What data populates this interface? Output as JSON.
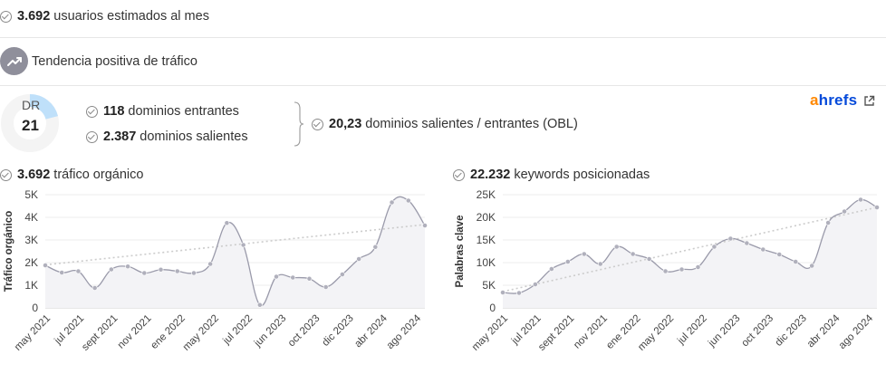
{
  "stats": {
    "monthly_users": {
      "value": "3.692",
      "label": "usuarios estimados al mes"
    },
    "trend": {
      "label": "Tendencia positiva de tráfico"
    },
    "dr": {
      "label": "DR",
      "value": "21",
      "score": 21
    },
    "incoming_domains": {
      "value": "118",
      "label": "dominios entrantes"
    },
    "outgoing_domains": {
      "value": "2.387",
      "label": "dominios salientes"
    },
    "obl": {
      "value": "20,23",
      "label": "dominios salientes / entrantes (OBL)"
    }
  },
  "brand": {
    "prefix": "a",
    "rest": "hrefs",
    "icon": "external-link-icon"
  },
  "icons": {
    "check": "check-circle-icon",
    "trend": "trending-up-icon"
  },
  "colors": {
    "line": "#9a9aaa",
    "trend_line": "#cccccc",
    "point": "#b0b0bc",
    "fill": "#f3f3f6",
    "dr_arc": "#bfe0fa",
    "dr_track": "#f4f4f4"
  },
  "charts": {
    "traffic": {
      "value": "3.692",
      "label": "tráfico orgánico"
    },
    "keywords": {
      "value": "22.232",
      "label": "keywords posicionadas"
    }
  },
  "chart_data": [
    {
      "type": "line",
      "ylabel": "Tráfico orgánico",
      "ylim": [
        0,
        5000
      ],
      "yticks": [
        0,
        1000,
        2000,
        3000,
        4000,
        5000
      ],
      "ytick_labels": [
        "0",
        "1K",
        "2K",
        "3K",
        "4K",
        "5K"
      ],
      "xtick_labels": [
        "may 2021",
        "jul 2021",
        "sept 2021",
        "nov 2021",
        "ene 2022",
        "may 2022",
        "jul 2022",
        "jun 2023",
        "oct 2023",
        "dic 2023",
        "abr 2024",
        "ago 2024"
      ],
      "values": [
        1880,
        1560,
        1620,
        880,
        1700,
        1830,
        1540,
        1690,
        1620,
        1540,
        1940,
        3750,
        2780,
        130,
        1380,
        1340,
        1290,
        920,
        1480,
        2160,
        2690,
        4660,
        4740,
        3640
      ],
      "trend": [
        1900,
        3680
      ],
      "grid": true
    },
    {
      "type": "line",
      "ylabel": "Palabras clave",
      "ylim": [
        0,
        25000
      ],
      "yticks": [
        0,
        5000,
        10000,
        15000,
        20000,
        25000
      ],
      "ytick_labels": [
        "0",
        "5K",
        "10K",
        "15K",
        "20K",
        "25K"
      ],
      "xtick_labels": [
        "may 2021",
        "jul 2021",
        "sept 2021",
        "nov 2021",
        "ene 2022",
        "may 2022",
        "jul 2022",
        "jun 2023",
        "oct 2023",
        "dic 2023",
        "abr 2024",
        "ago 2024"
      ],
      "values": [
        3400,
        3300,
        5200,
        8600,
        10200,
        11900,
        9700,
        13500,
        11900,
        10800,
        8100,
        8500,
        9000,
        13500,
        15300,
        14300,
        12900,
        11800,
        10200,
        9300,
        18800,
        21300,
        23900,
        22200
      ],
      "trend": [
        3600,
        22200
      ],
      "grid": true
    }
  ]
}
